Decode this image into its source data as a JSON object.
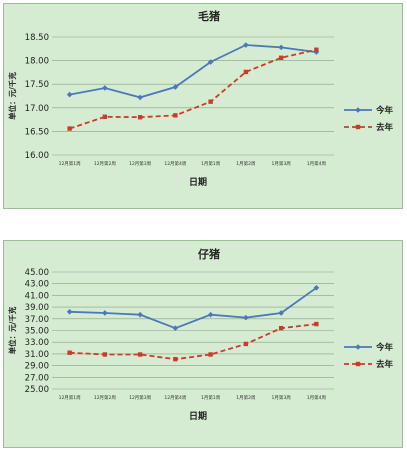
{
  "colors": {
    "background": "#d6ecd2",
    "this_year": "#4a78b8",
    "last_year": "#cc3a2c",
    "grid": "#7fa57a"
  },
  "chart_data": [
    {
      "type": "line",
      "title": "毛猪",
      "xlabel": "日期",
      "ylabel": "单位：元/千克",
      "categories": [
        "12月第1周",
        "12月第2周",
        "12月第3周",
        "12月第4周",
        "1月第1周",
        "1月第2周",
        "1月第3周",
        "1月第4周"
      ],
      "ylim": [
        16.0,
        18.5
      ],
      "yticks": [
        "16.00",
        "16.50",
        "17.00",
        "17.50",
        "18.00",
        "18.50"
      ],
      "grid": true,
      "legend": "right",
      "series": [
        {
          "name": "今年",
          "values": [
            17.28,
            17.42,
            17.22,
            17.44,
            17.97,
            18.33,
            18.28,
            18.18
          ]
        },
        {
          "name": "去年",
          "values": [
            16.56,
            16.81,
            16.8,
            16.84,
            17.13,
            17.76,
            18.06,
            18.23
          ]
        }
      ]
    },
    {
      "type": "line",
      "title": "仔猪",
      "xlabel": "日期",
      "ylabel": "单位：元/千克",
      "categories": [
        "12月第1周",
        "12月第2周",
        "12月第3周",
        "12月第4周",
        "1月第1周",
        "1月第2周",
        "1月第3周",
        "1月第4周"
      ],
      "ylim": [
        25.0,
        45.0
      ],
      "yticks": [
        "25.00",
        "27.00",
        "29.00",
        "31.00",
        "33.00",
        "35.00",
        "37.00",
        "39.00",
        "41.00",
        "43.00",
        "45.00"
      ],
      "grid": true,
      "legend": "right",
      "series": [
        {
          "name": "今年",
          "values": [
            38.2,
            38.0,
            37.7,
            35.4,
            37.7,
            37.2,
            38.0,
            42.3
          ]
        },
        {
          "name": "去年",
          "values": [
            31.2,
            30.9,
            30.9,
            30.1,
            30.9,
            32.7,
            35.4,
            36.1
          ]
        }
      ]
    }
  ]
}
